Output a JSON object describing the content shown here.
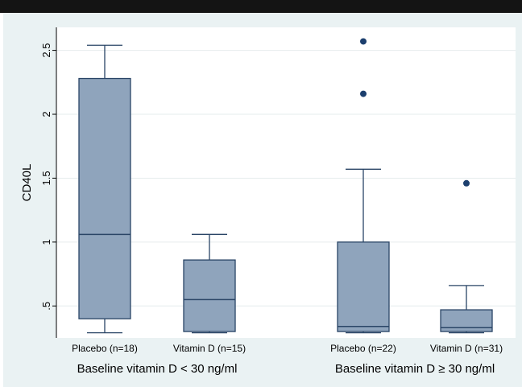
{
  "chart_data": {
    "type": "box",
    "ylabel": "CD40L",
    "yticks": [
      ".5",
      "1",
      "1.5",
      "2",
      "2.5"
    ],
    "ytick_values": [
      0.5,
      1,
      1.5,
      2,
      2.5
    ],
    "ylim": [
      0.25,
      2.68
    ],
    "grid": true,
    "groups": [
      {
        "label": "Baseline vitamin D < 30 ng/ml",
        "boxes": [
          {
            "label": "Placebo (n=18)",
            "min": 0.29,
            "q1": 0.4,
            "median": 1.06,
            "q3": 2.28,
            "max": 2.54,
            "outliers": []
          },
          {
            "label": "Vitamin D (n=15)",
            "min": 0.29,
            "q1": 0.3,
            "median": 0.55,
            "q3": 0.86,
            "max": 1.06,
            "outliers": []
          }
        ]
      },
      {
        "label": "Baseline vitamin D ≥ 30 ng/ml",
        "boxes": [
          {
            "label": "Placebo (n=22)",
            "min": 0.29,
            "q1": 0.3,
            "median": 0.34,
            "q3": 1.0,
            "max": 1.57,
            "outliers": [
              2.16,
              2.57
            ]
          },
          {
            "label": "Vitamin D (n=31)",
            "min": 0.29,
            "q1": 0.3,
            "median": 0.33,
            "q3": 0.47,
            "max": 0.66,
            "outliers": [
              1.46
            ]
          }
        ]
      }
    ],
    "colors": {
      "box_fill": "#8fa4bc",
      "box_stroke": "#2a4566",
      "outlier": "#1c3f6e",
      "grid": "#e6eced",
      "plot_bg": "#ffffff",
      "frame_bg": "#eaf2f3"
    }
  }
}
